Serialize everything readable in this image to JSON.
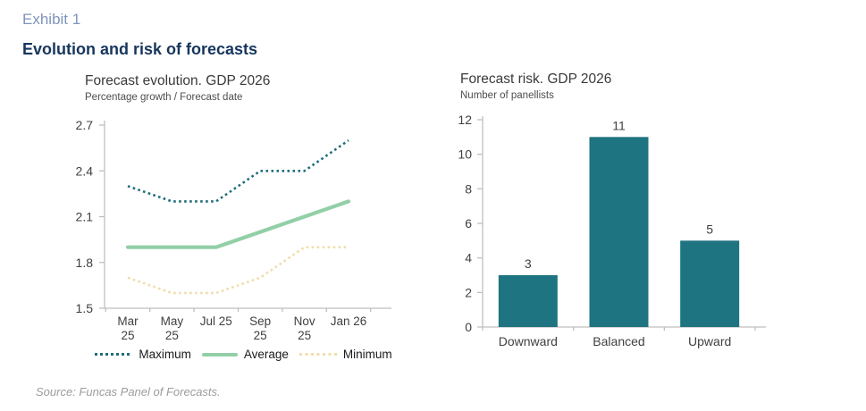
{
  "header": {
    "exhibit": "Exhibit 1",
    "title": "Evolution and risk of forecasts"
  },
  "source": "Source: Funcas Panel of Forecasts.",
  "colors": {
    "exhibit_blue": "#7e95bd",
    "title_navy": "#17365d",
    "axis_line": "#bfbfbf",
    "axis_text": "#404040",
    "maximum_line": "#1e6d7c",
    "average_line": "#92cfa7",
    "minimum_line": "#f0ddab",
    "bar_teal": "#1e7480",
    "source_gray": "#9c9c9c"
  },
  "chart_data": [
    {
      "id": "forecast-evolution",
      "type": "line",
      "title": "Forecast evolution. GDP 2026",
      "subtitle": "Percentage growth / Forecast date",
      "categories": [
        "Mar 25",
        "May 25",
        "Jul 25",
        "Sep 25",
        "Nov 25",
        "Jan 26"
      ],
      "wrap_labels": [
        true,
        true,
        false,
        true,
        true,
        false
      ],
      "ylim": [
        1.5,
        2.7
      ],
      "yticks": [
        2.7,
        2.4,
        2.1,
        1.8,
        1.5
      ],
      "grid": false,
      "legend_position": "bottom",
      "series": [
        {
          "name": "Maximum",
          "style": "dotted",
          "color": "#1e6d7c",
          "values": [
            2.3,
            2.2,
            2.2,
            2.4,
            2.4,
            2.6
          ]
        },
        {
          "name": "Average",
          "style": "solid",
          "color": "#92cfa7",
          "values": [
            1.9,
            1.9,
            1.9,
            2.0,
            2.1,
            2.2
          ]
        },
        {
          "name": "Minimum",
          "style": "dotted",
          "color": "#f0ddab",
          "values": [
            1.7,
            1.6,
            1.6,
            1.7,
            1.9,
            1.9
          ]
        }
      ]
    },
    {
      "id": "forecast-risk",
      "type": "bar",
      "title": "Forecast risk. GDP 2026",
      "subtitle": "Number of panellists",
      "categories": [
        "Downward",
        "Balanced",
        "Upward"
      ],
      "values": [
        3,
        11,
        5
      ],
      "bar_color": "#1e7480",
      "data_labels": [
        3,
        11,
        5
      ],
      "ylim": [
        0,
        12
      ],
      "yticks": [
        12,
        10,
        8,
        6,
        4,
        2,
        0
      ],
      "grid": false,
      "legend_position": "none"
    }
  ]
}
